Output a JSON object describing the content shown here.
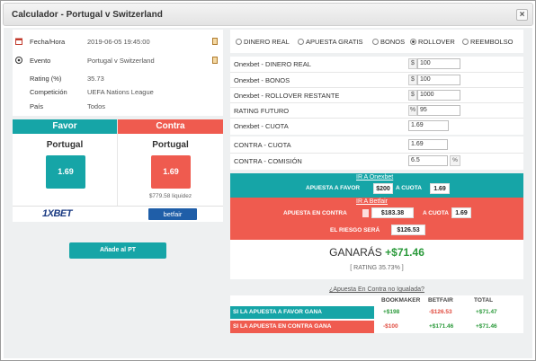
{
  "window": {
    "title": "Calculador - Portugal v Switzerland",
    "close": "×"
  },
  "info": [
    {
      "label": "Fecha/Hora",
      "value": "2019-06-05 19:45:00",
      "icon": "calendar-icon"
    },
    {
      "label": "Evento",
      "value": "Portugal v Switzerland",
      "icon": "soccer-ball-icon"
    },
    {
      "label": "Rating (%)",
      "value": "35.73"
    },
    {
      "label": "Competición",
      "value": "UEFA Nations League"
    },
    {
      "label": "País",
      "value": "Todos"
    }
  ],
  "favor": {
    "header": "Favor",
    "team": "Portugal",
    "odd": "1.69",
    "color": "#16a5a7",
    "bookmaker_logo": "1XBET"
  },
  "contra": {
    "header": "Contra",
    "team": "Portugal",
    "odd": "1.69",
    "color": "#ef5b4f",
    "liquidity": "$779.58 liquidez",
    "exchange_logo": "betfair"
  },
  "add_button": "Añade al PT",
  "modes": [
    {
      "label": "DINERO REAL",
      "selected": false
    },
    {
      "label": "APUESTA GRATIS",
      "selected": false
    },
    {
      "label": "BONOS",
      "selected": false
    },
    {
      "label": "ROLLOVER",
      "selected": true
    },
    {
      "label": "REEMBOLSO",
      "selected": false
    }
  ],
  "form": {
    "dinero_real": {
      "label": "Onexbet - DINERO REAL",
      "prefix": "$",
      "value": "100"
    },
    "bonos": {
      "label": "Onexbet - BONOS",
      "prefix": "$",
      "value": "100"
    },
    "rollover": {
      "label": "Onexbet - ROLLOVER RESTANTE",
      "prefix": "$",
      "value": "1000"
    },
    "rating_futuro": {
      "label": "RATING FUTURO",
      "prefix": "%",
      "value": "95"
    },
    "cuota": {
      "label": "Onexbet - CUOTA",
      "value": "1.69"
    },
    "contra_cuota": {
      "label": "CONTRA - CUOTA",
      "value": "1.69"
    },
    "contra_comision": {
      "label": "CONTRA - COMISIÓN",
      "value": "6.5",
      "suffix": "%"
    }
  },
  "favor_bet": {
    "link": "IR A Onexbet",
    "label": "APUESTA A FAVOR",
    "stake": "$200",
    "cuota_label": "A CUOTA",
    "cuota": "1.69"
  },
  "contra_bet": {
    "link": "IR A Betfair",
    "label": "APUESTA EN CONTRA",
    "stake": "$183.38",
    "cuota_label": "A CUOTA",
    "cuota": "1.69",
    "risk_label": "EL RIESGO SERÁ",
    "risk": "$126.53"
  },
  "result": {
    "label": "GANARÁS",
    "amount": "+$71.46",
    "rating": "[ RATING 35.73% ]"
  },
  "unmatched_link": "¿Apuesta En Contra no Igualada?",
  "summary": {
    "headers": [
      "BOOKMAKER",
      "BETFAIR",
      "TOTAL"
    ],
    "rows": [
      {
        "label": "SI LA APUESTA A FAVOR GANA",
        "bookmaker": "+$198",
        "betfair": "-$126.53",
        "total": "+$71.47",
        "color": "#16a5a7"
      },
      {
        "label": "SI LA APUESTA EN CONTRA GANA",
        "bookmaker": "-$100",
        "betfair": "+$171.46",
        "total": "+$71.46",
        "color": "#ef5b4f"
      }
    ]
  }
}
